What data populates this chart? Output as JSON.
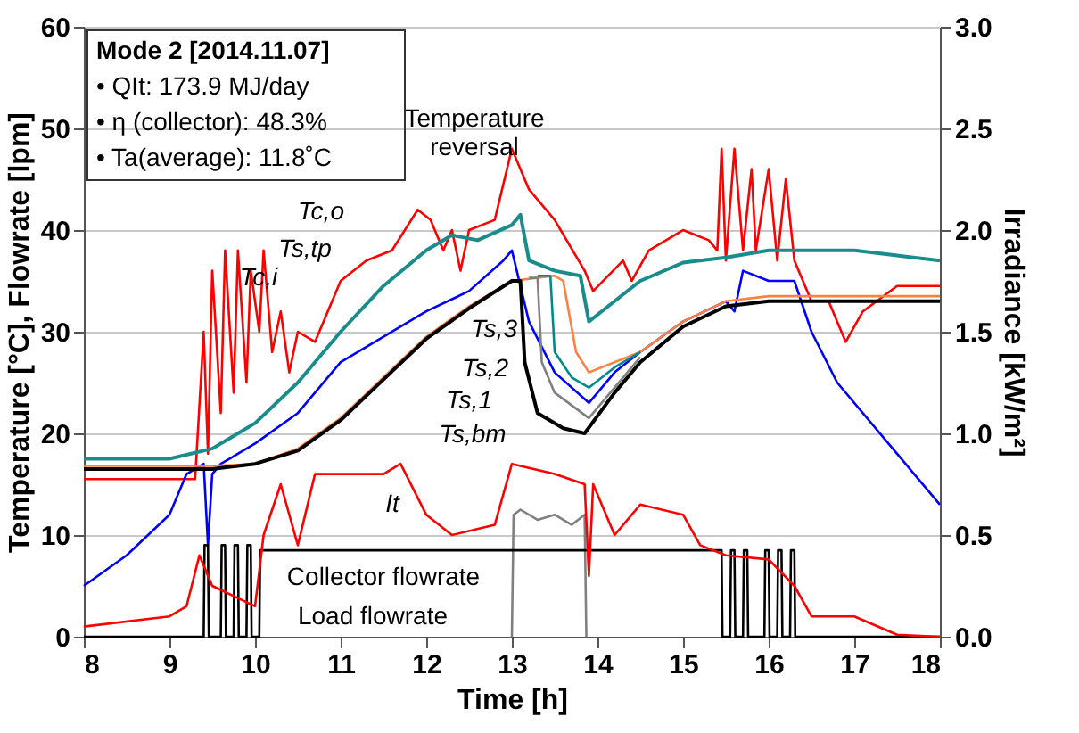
{
  "chart_data": {
    "type": "line",
    "title": "Mode 2 [2014.11.07]",
    "xlabel": "Time [h]",
    "ylabel": "Temperature [°C], Flowrate [lpm]",
    "y2label": "Irradiance [kW/m²]",
    "xlim": [
      8,
      18
    ],
    "xticks": [
      8,
      9,
      10,
      11,
      12,
      13,
      14,
      15,
      16,
      17,
      18
    ],
    "ylim": [
      0,
      60
    ],
    "yticks": [
      0,
      10,
      20,
      30,
      40,
      50,
      60
    ],
    "y2lim": [
      0,
      3.0
    ],
    "y2ticks": [
      {
        "value": 0,
        "label": "0.0"
      },
      0.5,
      {
        "value": 1,
        "label": "1.0"
      },
      1.5,
      {
        "value": 2,
        "label": "2.0"
      },
      2.5,
      {
        "value": 3,
        "label": "3.0"
      }
    ],
    "grid": "y",
    "line_style": "solid",
    "series": [
      {
        "color": "#ff0000",
        "x": [
          8,
          9.3,
          9.4,
          9.45,
          9.5,
          9.6,
          9.65,
          9.75,
          9.8,
          9.9,
          9.95,
          10.05,
          10.1,
          10.2,
          10.3,
          10.4,
          10.5,
          10.7,
          11,
          11.3,
          11.6,
          11.9,
          12.05,
          12.2,
          12.3,
          12.4,
          12.5,
          12.8,
          13,
          13.2,
          13.5,
          13.85,
          13.95,
          14.3,
          14.4,
          14.6,
          15,
          15.3,
          15.4,
          15.45,
          15.5,
          15.6,
          15.7,
          15.8,
          15.85,
          16,
          16.1,
          16.2,
          16.3,
          16.5,
          16.7,
          16.9,
          17.1,
          17.5,
          18
        ],
        "values": [
          15.5,
          15.5,
          30,
          18,
          36,
          22,
          38,
          24,
          38,
          25,
          36,
          30,
          38,
          28,
          32,
          26,
          30,
          29,
          35,
          37,
          38,
          42,
          41,
          38,
          40,
          36,
          40,
          41,
          48,
          44,
          41,
          36,
          34,
          37,
          35,
          38,
          40,
          39,
          38,
          48,
          37,
          48,
          38,
          46,
          38,
          46,
          37,
          45,
          37,
          33,
          33,
          29,
          32,
          34.5,
          34.5
        ]
      },
      {
        "color": "#1a8c8c",
        "x": [
          8,
          9,
          9.5,
          10,
          10.5,
          11,
          11.5,
          12,
          12.3,
          12.6,
          13,
          13.1,
          13.2,
          13.5,
          13.8,
          13.9,
          14.2,
          14.5,
          15,
          15.5,
          16,
          16.5,
          17,
          17.5,
          18
        ],
        "values": [
          17.5,
          17.5,
          18.5,
          21,
          25,
          30,
          34.5,
          38,
          39.5,
          39,
          40.5,
          41.5,
          37,
          36,
          35.5,
          31,
          33,
          35,
          36.8,
          37.3,
          38,
          38,
          38,
          37.5,
          37
        ]
      },
      {
        "color": "#0000ff",
        "x": [
          8,
          8.5,
          9,
          9.2,
          9.4,
          9.45,
          9.5,
          9.6,
          10,
          10.5,
          11,
          11.5,
          12,
          12.5,
          12.9,
          13,
          13.2,
          13.5,
          13.9,
          14.2,
          14.5,
          15,
          15.5,
          15.6,
          15.7,
          16,
          16.3,
          16.5,
          16.8,
          17.5,
          18
        ],
        "values": [
          5,
          8,
          12,
          16,
          17,
          9,
          16,
          17,
          19,
          22,
          27,
          29.5,
          32,
          34,
          37,
          38,
          31,
          26,
          23,
          26,
          28,
          31,
          33,
          32,
          36,
          35,
          35,
          30,
          25,
          18,
          13
        ]
      },
      {
        "color": "#ff8040",
        "x": [
          8,
          9.5,
          10,
          10.5,
          11,
          11.5,
          12,
          12.5,
          13,
          13.5,
          13.6,
          13.75,
          13.9,
          14.5,
          15,
          15.5,
          16,
          17,
          18
        ],
        "values": [
          16.8,
          16.8,
          17,
          18.5,
          21.5,
          25.5,
          29.5,
          32.5,
          35,
          35.5,
          35,
          28,
          26,
          28,
          31,
          33,
          33.5,
          33.5,
          33.5
        ]
      },
      {
        "color": "#008b8b",
        "x": [
          13.3,
          13.45,
          13.5,
          13.7,
          13.9,
          14.2,
          14.5
        ],
        "values": [
          35.5,
          35.5,
          28,
          25.5,
          24.5,
          26.5,
          28
        ]
      },
      {
        "color": "#808080",
        "x": [
          13.2,
          13.3,
          13.35,
          13.5,
          13.9,
          14.2,
          14.5
        ],
        "values": [
          35.3,
          35.3,
          27,
          24,
          21.5,
          24.5,
          27.5
        ]
      },
      {
        "color": "#000000",
        "x": [
          8,
          9.5,
          10,
          10.5,
          11,
          11.5,
          12,
          12.5,
          13,
          13.1,
          13.15,
          13.3,
          13.6,
          13.85,
          14.2,
          14.5,
          15,
          15.5,
          16,
          18
        ],
        "values": [
          16.5,
          16.5,
          17,
          18.3,
          21.3,
          25.3,
          29.3,
          32.3,
          35,
          35,
          27,
          22,
          20.5,
          20,
          24,
          27,
          30.5,
          32.5,
          33,
          33
        ]
      },
      {
        "color": "#ff0000",
        "axis": "y2",
        "x": [
          8,
          9,
          9.2,
          9.35,
          9.5,
          10,
          10.1,
          10.3,
          10.5,
          10.7,
          11,
          11.5,
          11.7,
          12,
          12.3,
          12.8,
          13,
          13.5,
          13.85,
          13.9,
          13.95,
          14.2,
          14.5,
          15,
          15.2,
          15.5,
          16,
          16.3,
          16.5,
          17,
          17.5,
          18
        ],
        "values": [
          0.05,
          0.1,
          0.15,
          0.4,
          0.25,
          0.15,
          0.5,
          0.75,
          0.45,
          0.8,
          0.8,
          0.8,
          0.85,
          0.6,
          0.5,
          0.55,
          0.85,
          0.8,
          0.75,
          0.3,
          0.75,
          0.5,
          0.65,
          0.6,
          0.45,
          0.4,
          0.38,
          0.25,
          0.1,
          0.1,
          0.01,
          0
        ]
      },
      {
        "color": "#808080",
        "x": [
          13,
          13.02,
          13.1,
          13.3,
          13.5,
          13.7,
          13.85,
          13.87
        ],
        "values": [
          0,
          12,
          12.5,
          11.5,
          12,
          11,
          12,
          0
        ]
      },
      {
        "color": "#000000",
        "x": [
          8,
          9.4,
          9.41,
          9.45,
          9.46,
          9.6,
          9.61,
          9.65,
          9.66,
          9.75,
          9.76,
          9.8,
          9.81,
          9.9,
          9.91,
          9.95,
          9.96,
          10.05,
          10.06,
          15.45,
          15.46,
          15.55,
          15.56,
          15.6,
          15.61,
          15.7,
          15.71,
          15.75,
          15.76,
          15.95,
          15.96,
          16,
          16.01,
          16.1,
          16.11,
          16.15,
          16.16,
          16.25,
          16.26,
          16.3,
          16.31,
          18
        ],
        "values": [
          0,
          0,
          9,
          9,
          0,
          0,
          9,
          9,
          0,
          0,
          9,
          9,
          0,
          0,
          9,
          9,
          0,
          0,
          8.5,
          8.5,
          0,
          0,
          8.5,
          8.5,
          0,
          0,
          8.5,
          8.5,
          0,
          0,
          8.5,
          8.5,
          0,
          0,
          8.5,
          8.5,
          0,
          0,
          8.5,
          8.5,
          0,
          0
        ]
      }
    ],
    "annotations": [
      "• QIt: 173.9 MJ/day",
      "• η (collector): 48.3%",
      "• Ta(average): 11.8˚C",
      "Temperature\nreversal",
      "Tc,o",
      "Ts,tp",
      "Tc,i",
      "Ts,3",
      "Ts,2",
      "Ts,1",
      "Ts,bm",
      "It",
      "Collector flowrate",
      "Load flowrate"
    ]
  }
}
